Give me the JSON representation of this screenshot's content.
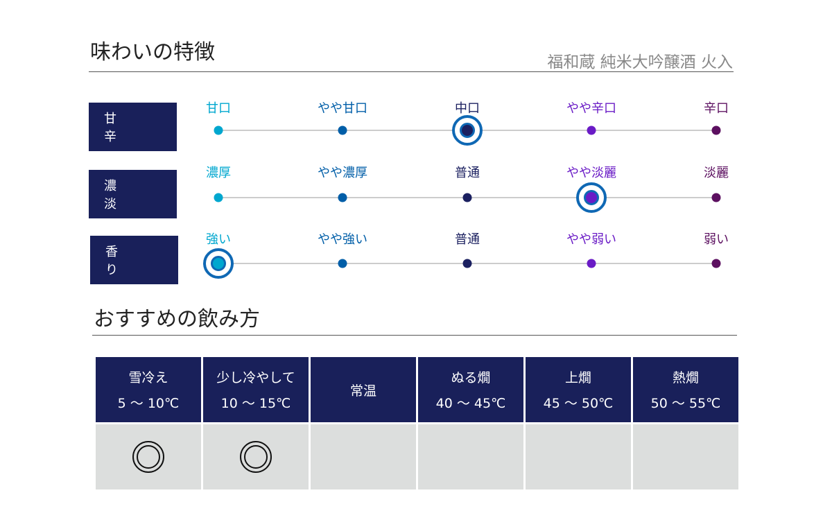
{
  "title": "味わいの特徴",
  "product": "福和蔵 純米大吟醸酒 火入",
  "colors": {
    "navy": "#19205a",
    "levels": [
      "#00a7cf",
      "#005ea8",
      "#1b2060",
      "#6a1bc6",
      "#5c1060"
    ],
    "selected_ring": "#0f68b4"
  },
  "taste": [
    {
      "label": "甘 辛",
      "levels": [
        "甘口",
        "やや甘口",
        "中口",
        "やや辛口",
        "辛口"
      ],
      "selected": 2
    },
    {
      "label": "濃 淡",
      "levels": [
        "濃厚",
        "やや濃厚",
        "普通",
        "やや淡麗",
        "淡麗"
      ],
      "selected": 3
    },
    {
      "label": "香 り",
      "levels": [
        "強い",
        "やや強い",
        "普通",
        "やや弱い",
        "弱い"
      ],
      "selected": 0
    }
  ],
  "drink_title": "おすすめの飲み方",
  "drink": [
    {
      "name": "雪冷え",
      "temp": "5 ～ 10℃",
      "recommended": true
    },
    {
      "name": "少し冷やして",
      "temp": "10 ～ 15℃",
      "recommended": true
    },
    {
      "name": "常温",
      "temp": "",
      "recommended": false
    },
    {
      "name": "ぬる燗",
      "temp": "40 ～ 45℃",
      "recommended": false
    },
    {
      "name": "上燗",
      "temp": "45 ～ 50℃",
      "recommended": false
    },
    {
      "name": "熱燗",
      "temp": "50 ～ 55℃",
      "recommended": false
    }
  ]
}
